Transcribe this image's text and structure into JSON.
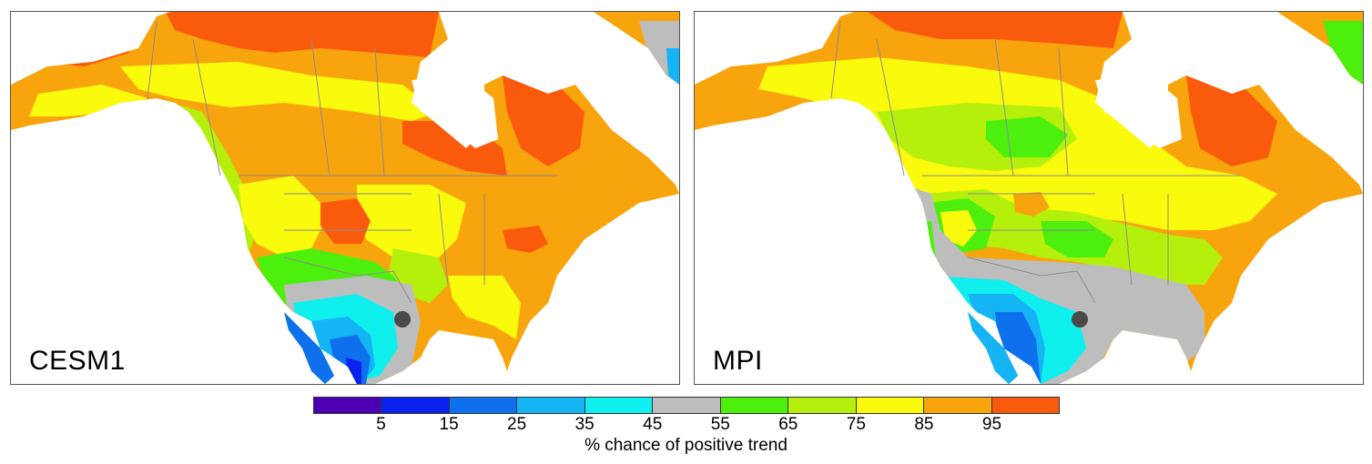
{
  "panels": [
    {
      "label": "CESM1"
    },
    {
      "label": "MPI"
    }
  ],
  "colorbar": {
    "colors": [
      "#4d00b3",
      "#0a22ee",
      "#0f70ee",
      "#14b4f5",
      "#0ff0ee",
      "#bdbdbd",
      "#4cf00c",
      "#b4f00c",
      "#fafa0c",
      "#f8a40c",
      "#fa5a0c"
    ],
    "ticks": [
      "5",
      "15",
      "25",
      "35",
      "45",
      "55",
      "65",
      "75",
      "85",
      "95"
    ],
    "title": "% chance of positive trend"
  },
  "marker_color": "#4a4a4a",
  "ocean_color": "#ffffff"
}
